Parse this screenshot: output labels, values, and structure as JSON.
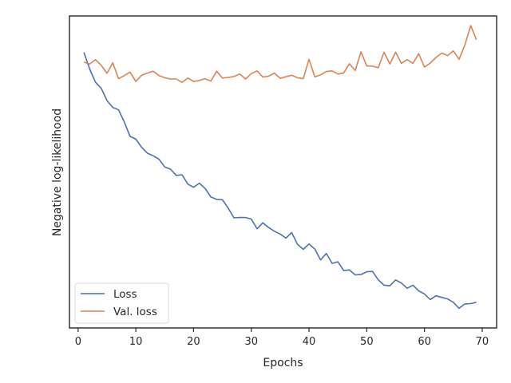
{
  "chart_data": {
    "type": "line",
    "xlabel": "Epochs",
    "ylabel": "Negative log-likelihood",
    "xlim": [
      -1.5,
      72.5
    ],
    "ylim": [
      0,
      100
    ],
    "xticks": [
      0,
      10,
      20,
      30,
      40,
      50,
      60,
      70
    ],
    "xtick_labels": [
      "0",
      "10",
      "20",
      "30",
      "40",
      "50",
      "60",
      "70"
    ],
    "yticks_shown": false,
    "grid": false,
    "legend": {
      "placement": "lower-left"
    },
    "series": [
      {
        "name": "Loss",
        "color": "#4c72b0",
        "x": [
          1,
          2,
          3,
          4,
          5,
          6,
          7,
          8,
          9,
          10,
          11,
          12,
          13,
          14,
          15,
          16,
          17,
          18,
          19,
          20,
          21,
          22,
          23,
          24,
          25,
          26,
          27,
          28,
          29,
          30,
          31,
          32,
          33,
          34,
          35,
          36,
          37,
          38,
          39,
          40,
          41,
          42,
          43,
          44,
          45,
          46,
          47,
          48,
          49,
          50,
          51,
          52,
          53,
          54,
          55,
          56,
          57,
          58,
          59,
          60,
          61,
          62,
          63,
          64,
          65,
          66,
          67,
          68,
          69
        ],
        "values": [
          88.3,
          83.0,
          78.8,
          76.8,
          72.9,
          70.7,
          69.9,
          66.0,
          61.4,
          60.5,
          57.9,
          56.0,
          55.2,
          54.1,
          51.6,
          50.9,
          48.9,
          49.1,
          46.1,
          45.1,
          46.4,
          44.7,
          42.0,
          41.2,
          41.1,
          38.4,
          35.3,
          35.4,
          35.4,
          34.9,
          31.8,
          33.7,
          32.2,
          31.0,
          30.1,
          28.8,
          30.6,
          26.8,
          25.2,
          26.9,
          25.3,
          21.8,
          23.9,
          20.7,
          21.2,
          18.4,
          18.6,
          17.0,
          17.1,
          18.0,
          18.1,
          15.4,
          13.7,
          13.5,
          15.4,
          14.4,
          12.7,
          13.7,
          11.9,
          10.9,
          9.1,
          10.3,
          9.8,
          9.3,
          8.2,
          6.3,
          7.7,
          7.8,
          8.2
        ]
      },
      {
        "name": "Val. loss",
        "color": "#dd8452",
        "x": [
          1,
          2,
          3,
          4,
          5,
          6,
          7,
          8,
          9,
          10,
          11,
          12,
          13,
          14,
          15,
          16,
          17,
          18,
          19,
          20,
          21,
          22,
          23,
          24,
          25,
          26,
          27,
          28,
          29,
          30,
          31,
          32,
          33,
          34,
          35,
          36,
          37,
          38,
          39,
          40,
          41,
          42,
          43,
          44,
          45,
          46,
          47,
          48,
          49,
          50,
          51,
          52,
          53,
          54,
          55,
          56,
          57,
          58,
          59,
          60,
          61,
          62,
          63,
          64,
          65,
          66,
          67,
          68,
          69
        ],
        "values": [
          85.2,
          84.6,
          86.0,
          84.2,
          81.6,
          85.0,
          79.9,
          80.9,
          82.0,
          79.0,
          81.0,
          81.7,
          82.3,
          80.9,
          80.2,
          79.8,
          79.8,
          78.7,
          80.1,
          79.0,
          79.3,
          79.9,
          79.1,
          82.3,
          80.1,
          80.3,
          80.6,
          81.4,
          79.8,
          81.5,
          82.4,
          80.4,
          80.7,
          81.7,
          80.0,
          80.5,
          81.0,
          80.2,
          79.9,
          86.1,
          80.5,
          81.1,
          82.2,
          82.4,
          81.4,
          81.7,
          84.7,
          82.5,
          88.5,
          84.0,
          83.9,
          83.4,
          88.4,
          84.6,
          88.4,
          84.8,
          86.0,
          84.8,
          87.9,
          83.6,
          84.9,
          86.7,
          88.1,
          87.3,
          88.8,
          86.1,
          90.7,
          96.9,
          92.4
        ]
      }
    ]
  }
}
